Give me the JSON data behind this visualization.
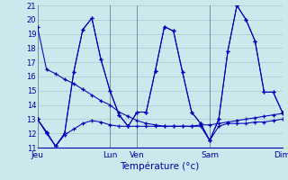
{
  "xlabel": "Température (°c)",
  "bg_color": "#cce8ec",
  "grid_color": "#a8c8d0",
  "line_color": "#0000bb",
  "ylim": [
    11,
    21
  ],
  "yticks": [
    11,
    12,
    13,
    14,
    15,
    16,
    17,
    18,
    19,
    20,
    21
  ],
  "xlim": [
    0,
    27
  ],
  "day_labels": [
    "Jeu",
    "Lun",
    "Ven",
    "Sam",
    "Dim"
  ],
  "day_positions": [
    0,
    8,
    11,
    19,
    27
  ],
  "series": [
    [
      19.5,
      16.5,
      16.2,
      15.8,
      15.5,
      15.1,
      14.7,
      14.3,
      14.0,
      13.5,
      13.2,
      12.9,
      12.7,
      12.6,
      12.5,
      12.5,
      12.5,
      12.5,
      12.6,
      12.6,
      12.7,
      12.8,
      12.9,
      13.0,
      13.1,
      13.2,
      13.3,
      13.4
    ],
    [
      13.0,
      12.0,
      11.1,
      11.9,
      12.3,
      12.7,
      12.9,
      12.8,
      12.6,
      12.5,
      12.5,
      12.5,
      12.5,
      12.5,
      12.5,
      12.5,
      12.5,
      12.5,
      12.5,
      11.5,
      12.5,
      12.7,
      12.7,
      12.7,
      12.8,
      12.8,
      12.9,
      13.0
    ],
    [
      13.0,
      12.1,
      11.1,
      12.0,
      16.3,
      19.3,
      20.1,
      17.2,
      15.0,
      13.3,
      12.5,
      13.5,
      13.5,
      16.4,
      19.5,
      19.2,
      16.3,
      13.5,
      12.7,
      11.5,
      13.0,
      17.8,
      21.0,
      20.0,
      18.5,
      14.9,
      14.9,
      13.5
    ],
    [
      13.0,
      12.1,
      11.1,
      12.0,
      16.3,
      19.3,
      20.1,
      17.2,
      15.0,
      13.3,
      12.5,
      13.5,
      13.5,
      16.4,
      19.5,
      19.2,
      16.3,
      13.5,
      12.7,
      11.5,
      13.0,
      17.8,
      21.0,
      20.0,
      18.5,
      14.9,
      14.9,
      13.5
    ]
  ]
}
